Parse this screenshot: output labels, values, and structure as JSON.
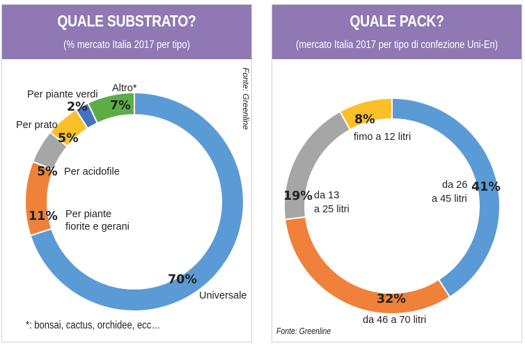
{
  "colors": {
    "header_bg": "#8f78b3",
    "blue": "#5b9bd5",
    "orange": "#f0813a",
    "gray": "#a6a6a6",
    "yellow": "#fcbf28",
    "navy": "#4473c5",
    "green": "#5dad47"
  },
  "left": {
    "title": "QUALE SUBSTRATO?",
    "subtitle": "(% mercato Italia 2017 per tipo)",
    "source": "Fonte: Greenline",
    "footnote": "*: bonsai, cactus, orchidee, ecc…"
  },
  "right": {
    "title": "QUALE PACK?",
    "subtitle": "(mercato Italia 2017 per tipo di confezione Uni-En)",
    "source": "Fonte: Greenline"
  },
  "chart_data": [
    {
      "type": "pie",
      "title": "QUALE SUBSTRATO?",
      "subtitle": "(% mercato Italia 2017 per tipo)",
      "style": "donut",
      "slices": [
        {
          "label": "Universale",
          "value": 70,
          "pct_text": "70%",
          "color": "#5b9bd5"
        },
        {
          "label": "Per piante fiorite e gerani",
          "value": 11,
          "pct_text": "11%",
          "color": "#f0813a"
        },
        {
          "label": "Per acidofile",
          "value": 5,
          "pct_text": "5%",
          "color": "#a6a6a6"
        },
        {
          "label": "Per prato",
          "value": 5,
          "pct_text": "5%",
          "color": "#fcbf28"
        },
        {
          "label": "Per piante verdi",
          "value": 2,
          "pct_text": "2%",
          "color": "#4473c5"
        },
        {
          "label": "Altro*",
          "value": 7,
          "pct_text": "7%",
          "color": "#5dad47"
        }
      ]
    },
    {
      "type": "pie",
      "title": "QUALE PACK?",
      "subtitle": "(mercato Italia 2017 per tipo di confezione Uni-En)",
      "style": "donut",
      "slices": [
        {
          "label": "da 26 a 45 litri",
          "value": 41,
          "pct_text": "41%",
          "color": "#5b9bd5"
        },
        {
          "label": "da 46 a 70 litri",
          "value": 32,
          "pct_text": "32%",
          "color": "#f0813a"
        },
        {
          "label": "da 13 a 25 litri",
          "value": 19,
          "pct_text": "19%",
          "color": "#a6a6a6"
        },
        {
          "label": "fimo a 12 litri",
          "value": 8,
          "pct_text": "8%",
          "color": "#fcbf28"
        }
      ]
    }
  ]
}
